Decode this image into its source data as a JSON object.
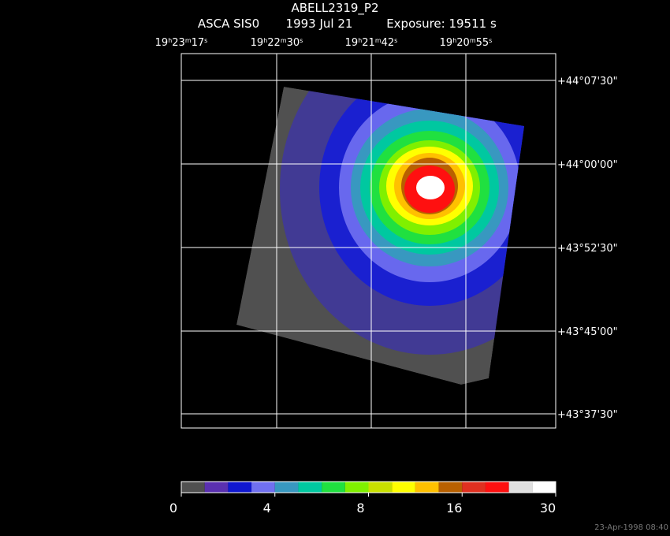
{
  "title": "ABELL2319_P2",
  "subtitle": [
    "ASCA SIS0",
    "1993 Jul 21",
    "Exposure: 19511 s"
  ],
  "ra_labels": [
    [
      "19",
      "h",
      "23",
      "m",
      "17",
      "s"
    ],
    [
      "19",
      "h",
      "22",
      "m",
      "30",
      "s"
    ],
    [
      "19",
      "h",
      "21",
      "m",
      "42",
      "s"
    ],
    [
      "19",
      "h",
      "20",
      "m",
      "55",
      "s"
    ]
  ],
  "dec_labels": [
    "+44°07'30\"",
    "+44°00'00\"",
    "+43°52'30\"",
    "+43°45'00\"",
    "+43°37'30\""
  ],
  "colorbar": {
    "ticks": [
      0,
      4,
      8,
      16,
      30
    ],
    "colors": [
      "#505050",
      "#5a30b0",
      "#1018d0",
      "#7070f0",
      "#3898c0",
      "#00c8a0",
      "#20e040",
      "#80f000",
      "#c8e000",
      "#ffff00",
      "#ffc000",
      "#b86000",
      "#e03020",
      "#ff1010",
      "#e0e0e0",
      "#ffffff"
    ]
  },
  "timestamp": "23-Apr-1998 08:40"
}
